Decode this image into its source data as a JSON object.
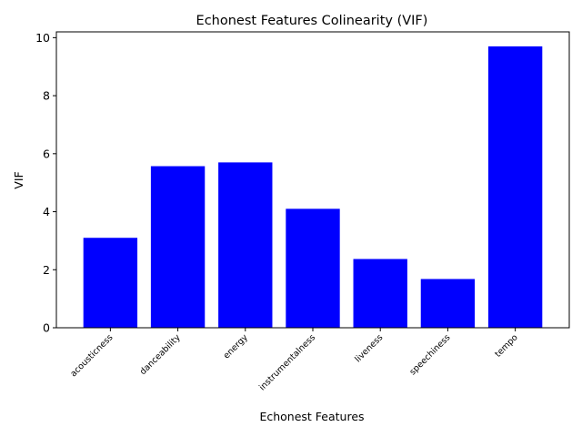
{
  "chart_data": {
    "type": "bar",
    "title": "Echonest Features Colinearity (VIF)",
    "xlabel": "Echonest Features",
    "ylabel": "VIF",
    "categories": [
      "acousticness",
      "danceability",
      "energy",
      "instrumentalness",
      "liveness",
      "speechiness",
      "tempo"
    ],
    "values": [
      3.1,
      5.57,
      5.7,
      4.1,
      2.37,
      1.68,
      9.7
    ],
    "ylim": [
      0,
      10.2
    ],
    "yticks": [
      0,
      2,
      4,
      6,
      8,
      10
    ],
    "bar_color": "#0000ff",
    "grid": false,
    "legend": "none",
    "xtick_rotation": 45
  }
}
